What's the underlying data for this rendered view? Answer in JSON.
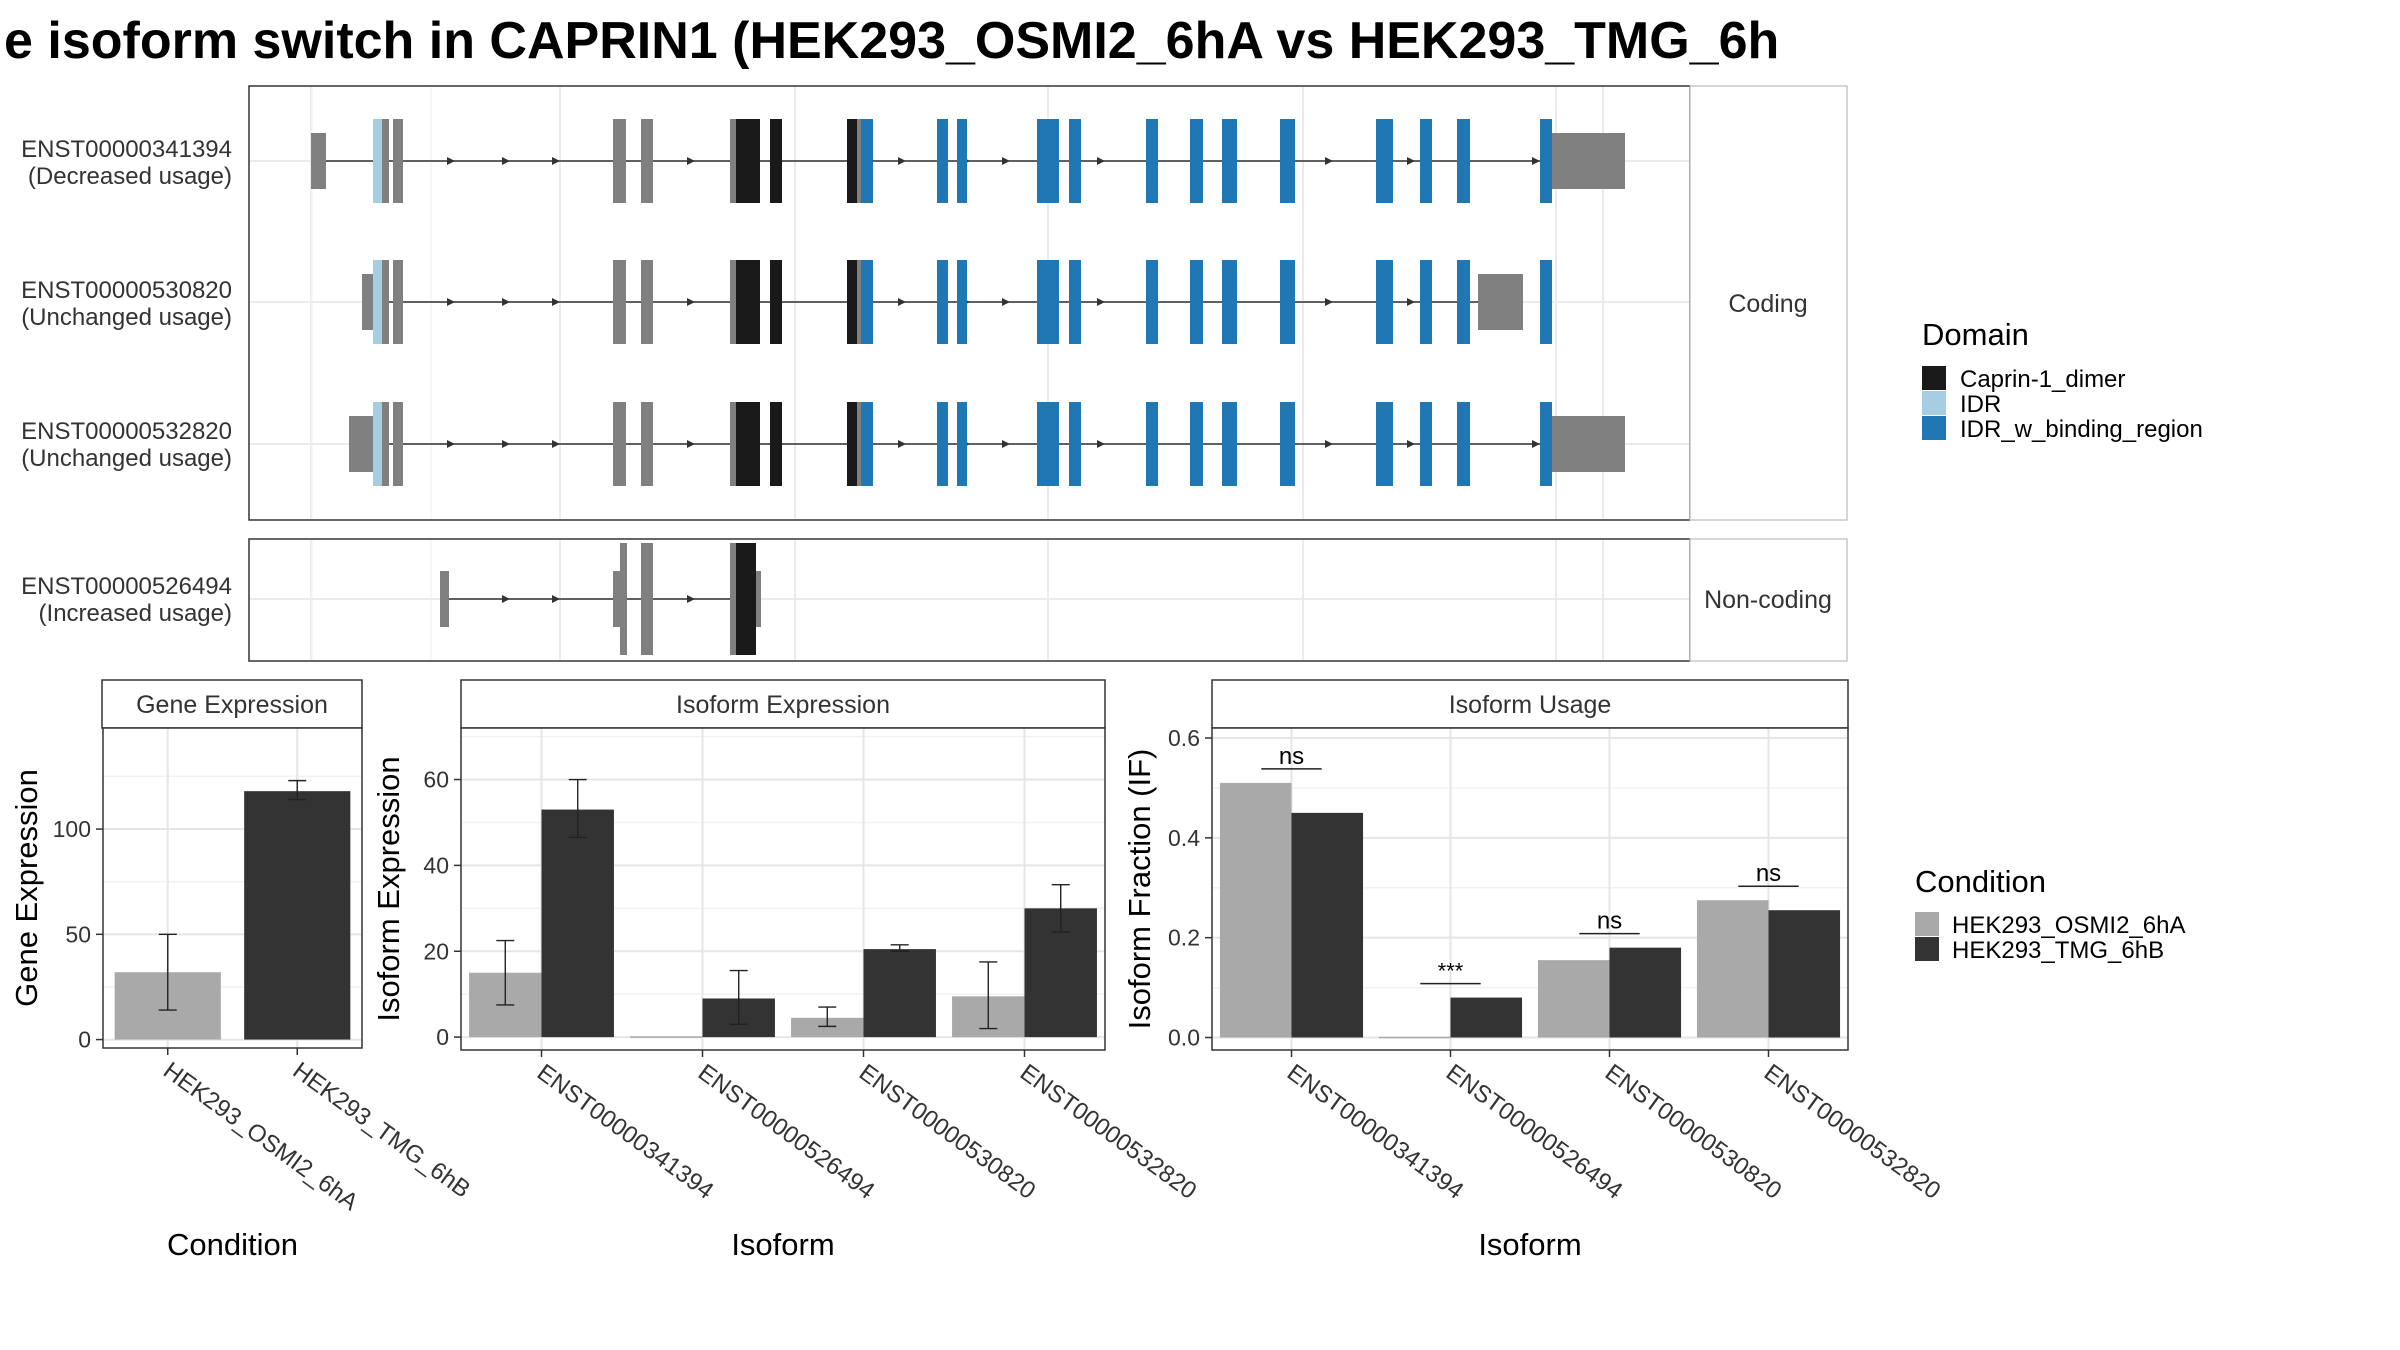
{
  "title": "e isoform switch in CAPRIN1 (HEK293_OSMI2_6hA vs HEK293_TMG_6h",
  "transcripts": {
    "facets": [
      "Coding",
      "Non-coding"
    ],
    "rows": [
      {
        "id": "ENST00000341394",
        "usage": "(Decreased usage)",
        "facet": "Coding"
      },
      {
        "id": "ENST00000530820",
        "usage": "(Unchanged usage)",
        "facet": "Coding"
      },
      {
        "id": "ENST00000532820",
        "usage": "(Unchanged usage)",
        "facet": "Coding"
      },
      {
        "id": "ENST00000526494",
        "usage": "(Increased usage)",
        "facet": "Non-coding"
      }
    ]
  },
  "domain_legend": {
    "title": "Domain",
    "items": [
      {
        "label": "Caprin-1_dimer",
        "color": "#1a1a1a"
      },
      {
        "label": "IDR",
        "color": "#a6cee3"
      },
      {
        "label": "IDR_w_binding_region",
        "color": "#1f78b4"
      }
    ]
  },
  "condition_legend": {
    "title": "Condition",
    "items": [
      {
        "label": "HEK293_OSMI2_6hA",
        "color": "#a9a9a9"
      },
      {
        "label": "HEK293_TMG_6hB",
        "color": "#333333"
      }
    ]
  },
  "chart_data": [
    {
      "type": "bar",
      "title": "Gene Expression",
      "xlabel": "Condition",
      "ylabel": "Gene Expression",
      "categories": [
        "HEK293_OSMI2_6hA",
        "HEK293_TMG_6hB"
      ],
      "values": [
        32,
        118
      ],
      "error_low": [
        14,
        114
      ],
      "error_high": [
        50,
        123
      ],
      "ylim": [
        -4,
        148
      ],
      "yticks": [
        0,
        50,
        100
      ]
    },
    {
      "type": "bar",
      "title": "Isoform Expression",
      "xlabel": "Isoform",
      "ylabel": "Isoform Expression",
      "categories": [
        "ENST00000341394",
        "ENST00000526494",
        "ENST00000530820",
        "ENST00000532820"
      ],
      "series": [
        {
          "name": "HEK293_OSMI2_6hA",
          "values": [
            15,
            0,
            4.5,
            9.5
          ],
          "error_low": [
            7.5,
            0,
            2.5,
            2
          ],
          "error_high": [
            22.5,
            0,
            7,
            17.5
          ]
        },
        {
          "name": "HEK293_TMG_6hB",
          "values": [
            53,
            9,
            20.5,
            30
          ],
          "error_low": [
            46.5,
            3,
            20,
            24.5
          ],
          "error_high": [
            60,
            15.5,
            21.5,
            35.5
          ]
        }
      ],
      "ylim": [
        -3,
        72
      ],
      "yticks": [
        0,
        20,
        40,
        60
      ]
    },
    {
      "type": "bar",
      "title": "Isoform Usage",
      "xlabel": "Isoform",
      "ylabel": "Isoform Fraction (IF)",
      "categories": [
        "ENST00000341394",
        "ENST00000526494",
        "ENST00000530820",
        "ENST00000532820"
      ],
      "series": [
        {
          "name": "HEK293_OSMI2_6hA",
          "values": [
            0.51,
            0.0,
            0.155,
            0.275
          ]
        },
        {
          "name": "HEK293_TMG_6hB",
          "values": [
            0.45,
            0.08,
            0.18,
            0.255
          ]
        }
      ],
      "significance": [
        "ns",
        "***",
        "ns",
        "ns"
      ],
      "ylim": [
        -0.025,
        0.62
      ],
      "yticks": [
        "0.0",
        "0.2",
        "0.4",
        "0.6"
      ]
    }
  ]
}
